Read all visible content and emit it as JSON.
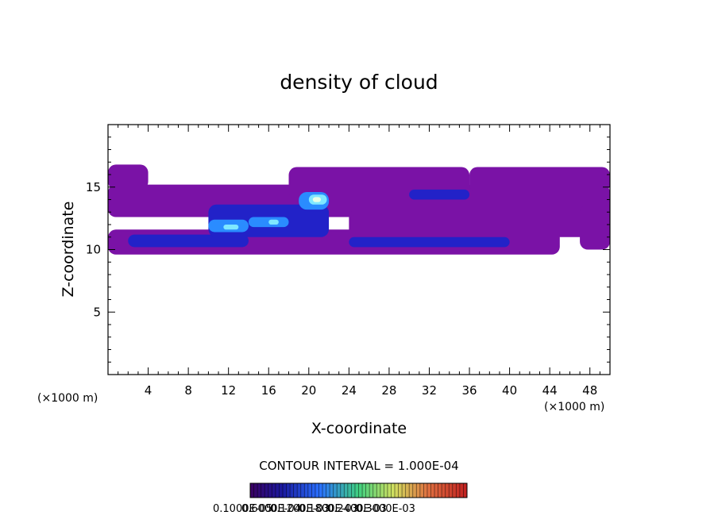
{
  "chart_data": {
    "type": "heatmap",
    "title": "density of cloud",
    "xlabel": "X-coordinate",
    "ylabel": "Z-coordinate",
    "x_unit": "(×1000 m)",
    "y_unit": "(×1000 m)",
    "xlim": [
      0,
      50
    ],
    "ylim": [
      0,
      20
    ],
    "x_ticks": [
      4,
      8,
      12,
      16,
      20,
      24,
      28,
      32,
      36,
      40,
      44,
      48
    ],
    "y_ticks": [
      5,
      10,
      15
    ],
    "contour_interval_text": "CONTOUR INTERVAL = 1.000E-04",
    "colorbar_labels": [
      "0.1000E-05",
      "0.6000E-04",
      "0.1200E-03",
      "0.1800E-03",
      "0.2400E-03",
      "0.3000E-03"
    ],
    "colors": {
      "low": "#7a12a6",
      "mid_low": "#2222c8",
      "mid": "#2a8cff",
      "high": "#7fe8ff",
      "peak": "#e6ffe6"
    },
    "cloud_regions": [
      {
        "x": [
          0,
          45
        ],
        "z": [
          9.6,
          11.6
        ],
        "level": "low"
      },
      {
        "x": [
          0,
          50
        ],
        "z": [
          12.6,
          15.2
        ],
        "level": "low"
      },
      {
        "x": [
          0,
          4
        ],
        "z": [
          14.8,
          16.8
        ],
        "level": "low"
      },
      {
        "x": [
          18,
          36
        ],
        "z": [
          14.0,
          16.6
        ],
        "level": "low"
      },
      {
        "x": [
          36,
          50
        ],
        "z": [
          14.6,
          16.6
        ],
        "level": "low"
      },
      {
        "x": [
          24,
          50
        ],
        "z": [
          11.0,
          13.2
        ],
        "level": "low"
      },
      {
        "x": [
          47,
          50
        ],
        "z": [
          10.0,
          13.6
        ],
        "level": "low"
      },
      {
        "x": [
          2,
          14
        ],
        "z": [
          10.2,
          11.2
        ],
        "level": "mid_low"
      },
      {
        "x": [
          24,
          40
        ],
        "z": [
          10.2,
          11.0
        ],
        "level": "mid_low"
      },
      {
        "x": [
          10,
          22
        ],
        "z": [
          11.0,
          13.6
        ],
        "level": "mid_low"
      },
      {
        "x": [
          30,
          36
        ],
        "z": [
          14.0,
          14.8
        ],
        "level": "mid_low"
      },
      {
        "x": [
          10,
          14
        ],
        "z": [
          11.4,
          12.4
        ],
        "level": "mid"
      },
      {
        "x": [
          14,
          18
        ],
        "z": [
          11.8,
          12.6
        ],
        "level": "mid"
      },
      {
        "x": [
          19,
          22
        ],
        "z": [
          13.2,
          14.6
        ],
        "level": "mid"
      },
      {
        "x": [
          11.5,
          13
        ],
        "z": [
          11.6,
          12.0
        ],
        "level": "high"
      },
      {
        "x": [
          20,
          21.8
        ],
        "z": [
          13.6,
          14.4
        ],
        "level": "high"
      },
      {
        "x": [
          16,
          17
        ],
        "z": [
          12.0,
          12.4
        ],
        "level": "high"
      },
      {
        "x": [
          20.4,
          21.2
        ],
        "z": [
          13.8,
          14.2
        ],
        "level": "peak"
      }
    ]
  }
}
